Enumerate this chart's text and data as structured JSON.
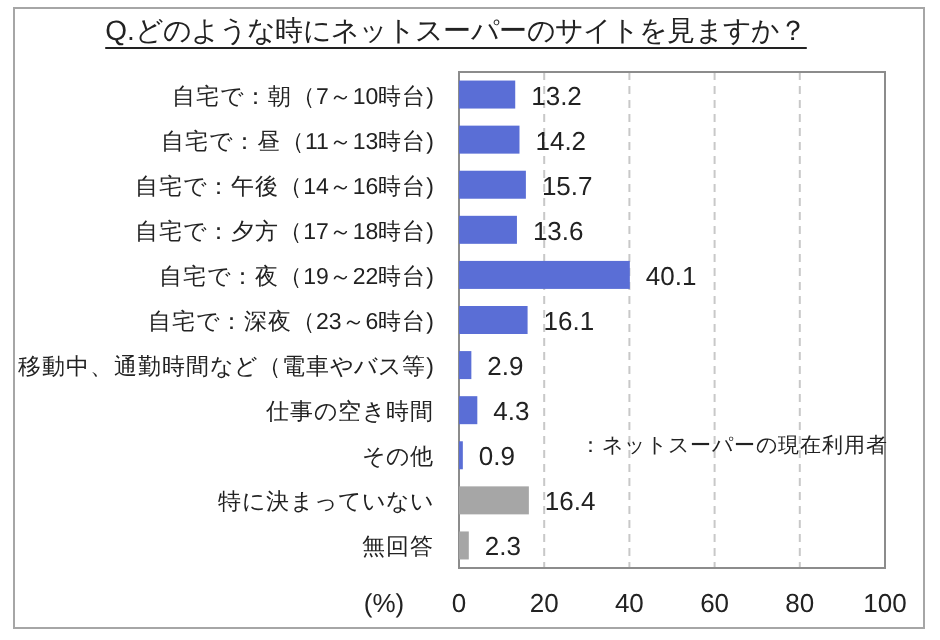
{
  "chart_data": {
    "type": "bar",
    "orientation": "horizontal",
    "title": "Q.どのような時にネットスーパーのサイトを見ますか？",
    "xlabel": "(%)",
    "categories": [
      "自宅で：朝（7～10時台)",
      "自宅で：昼（11～13時台)",
      "自宅で：午後（14～16時台)",
      "自宅で：夕方（17～18時台)",
      "自宅で：夜（19～22時台)",
      "自宅で：深夜（23～6時台)",
      "移動中、通勤時間など（電車やバス等)",
      "仕事の空き時間",
      "その他",
      "特に決まっていない",
      "無回答"
    ],
    "values": [
      13.2,
      14.2,
      15.7,
      13.6,
      40.1,
      16.1,
      2.9,
      4.3,
      0.9,
      16.4,
      2.3
    ],
    "colors": [
      "#5a6ed6",
      "#5a6ed6",
      "#5a6ed6",
      "#5a6ed6",
      "#5a6ed6",
      "#5a6ed6",
      "#5a6ed6",
      "#5a6ed6",
      "#5a6ed6",
      "#a6a6a6",
      "#a6a6a6"
    ],
    "xlim": [
      0,
      100
    ],
    "xticks": [
      0,
      20,
      40,
      60,
      80,
      100
    ],
    "grid": "x",
    "data_labels": true,
    "annotations": [
      "：ネットスーパーの現在利用者"
    ]
  }
}
